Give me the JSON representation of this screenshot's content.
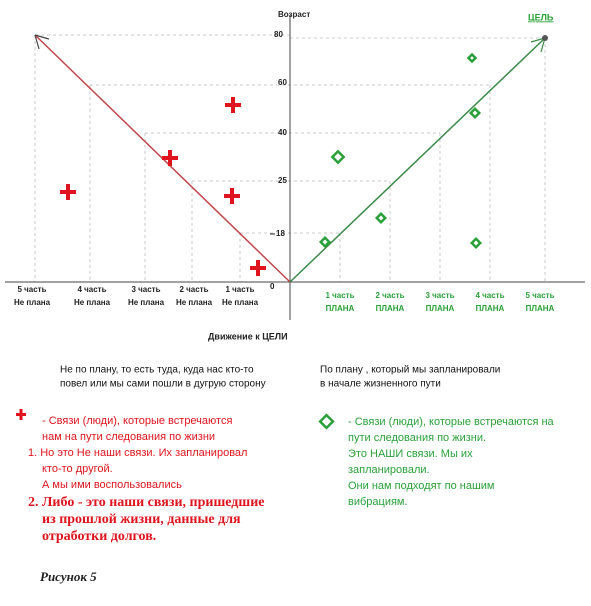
{
  "axis": {
    "y_title": "Возраст",
    "goal": "ЦЕЛЬ",
    "x_title": "Движение к ЦЕЛИ",
    "y_labels": [
      "80",
      "60",
      "40",
      "25",
      "18",
      "0"
    ]
  },
  "left_parts": [
    [
      "5 часть",
      "Не плана"
    ],
    [
      "4 часть",
      "Не плана"
    ],
    [
      "3 часть",
      "Не плана"
    ],
    [
      "2 часть",
      "Не плана"
    ],
    [
      "1 часть",
      "Не плана"
    ]
  ],
  "right_parts": [
    [
      "1 часть",
      "ПЛАНА"
    ],
    [
      "2 часть",
      "ПЛАНА"
    ],
    [
      "3 часть",
      "ПЛАНА"
    ],
    [
      "4 часть",
      "ПЛАНА"
    ],
    [
      "5 часть",
      "ПЛАНА"
    ]
  ],
  "left_caption": [
    "Не по плану, то есть туда, куда нас кто-то",
    "повел или мы сами пошли в дугрую сторону"
  ],
  "right_caption": [
    "По плану , который мы запланировали",
    "в начале жизненного пути"
  ],
  "red_legend": [
    "- Связи (люди), которые встречаются",
    "нам на пути следования  по жизни",
    "1. Но это Не наши связи. Их запланировал",
    "кто-то другой.",
    "А мы ими воспользовались",
    "2. Либо - это наши связи, пришедшие",
    "из прошлой жизни, данные для",
    "отработки долгов."
  ],
  "green_legend": [
    "- Связи (люди), которые встречаются на",
    "пути следования по жизни.",
    "Это НАШИ связи. Мы их",
    "запланировали.",
    "Они нам подходят по нашим",
    "вибрациям."
  ],
  "figure_caption": "Рисунок 5"
}
